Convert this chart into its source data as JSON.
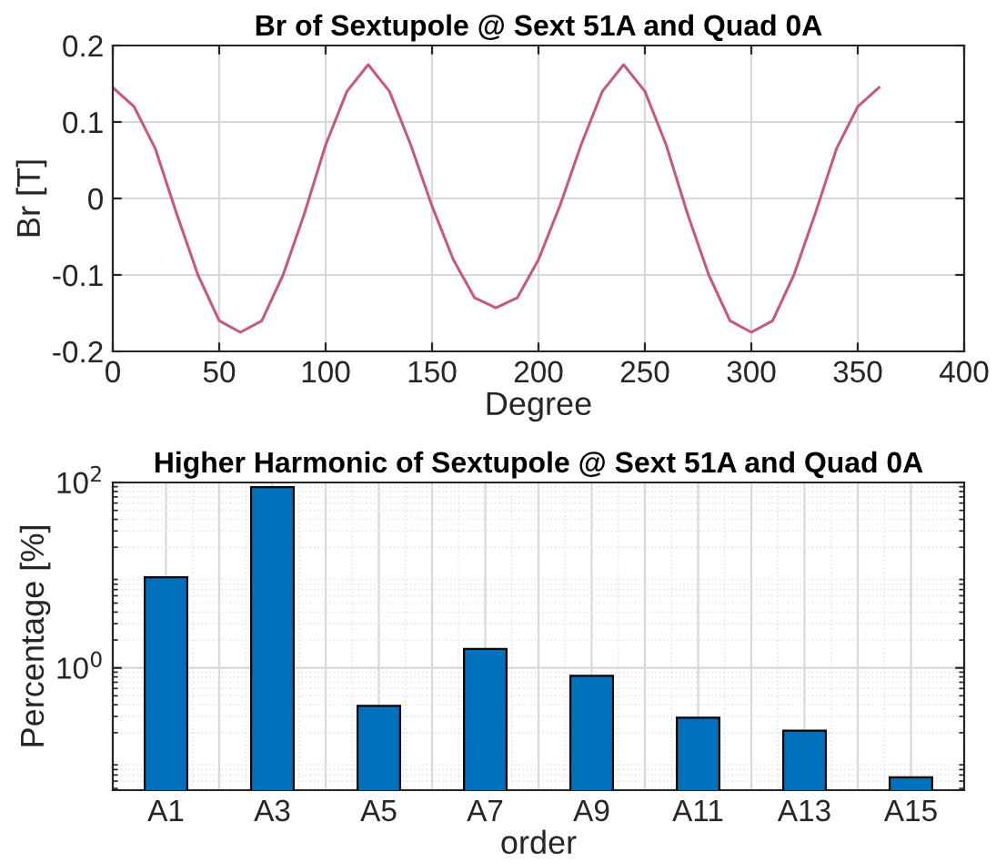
{
  "chart_data": [
    {
      "type": "line",
      "title": "Br of Sextupole @ Sext 51A and Quad 0A",
      "xlabel": "Degree",
      "ylabel": "Br [T]",
      "x": [
        0,
        10,
        20,
        30,
        40,
        50,
        60,
        70,
        80,
        90,
        100,
        110,
        120,
        130,
        140,
        150,
        160,
        170,
        180,
        190,
        200,
        210,
        220,
        230,
        240,
        250,
        260,
        270,
        280,
        290,
        300,
        310,
        320,
        330,
        340,
        350,
        360
      ],
      "series": [
        {
          "color": "#c85a78",
          "values": [
            0.145,
            0.12,
            0.065,
            -0.02,
            -0.1,
            -0.16,
            -0.175,
            -0.16,
            -0.1,
            -0.02,
            0.07,
            0.14,
            0.175,
            0.14,
            0.07,
            -0.01,
            -0.08,
            -0.13,
            -0.143,
            -0.13,
            -0.08,
            -0.01,
            0.07,
            0.14,
            0.175,
            0.14,
            0.07,
            -0.02,
            -0.1,
            -0.16,
            -0.175,
            -0.16,
            -0.1,
            -0.02,
            0.065,
            0.12,
            0.145
          ]
        }
      ],
      "xlim": [
        0,
        400
      ],
      "xticks": [
        0,
        50,
        100,
        150,
        200,
        250,
        300,
        350,
        400
      ],
      "ylim": [
        -0.2,
        0.2
      ],
      "yticks": [
        -0.2,
        -0.1,
        0,
        0.1,
        0.2
      ],
      "grid": true
    },
    {
      "type": "bar",
      "title": "Higher Harmonic of Sextupole @ Sext 51A and Quad 0A",
      "xlabel": "order",
      "ylabel": "Percentage [%]",
      "categories": [
        "A1",
        null,
        "A3",
        null,
        "A5",
        null,
        "A7",
        null,
        "A9",
        null,
        "A11",
        null,
        "A13",
        null,
        "A15"
      ],
      "series": [
        {
          "color": "#0072bd",
          "values": [
            9.5,
            null,
            89,
            null,
            0.39,
            null,
            1.6,
            null,
            0.82,
            null,
            0.29,
            null,
            0.21,
            null,
            0.066
          ]
        }
      ],
      "log": "y",
      "ylim": [
        0.048,
        100
      ],
      "yticks": [
        {
          "value": 1,
          "label": "10$^{0}$"
        },
        {
          "value": 100,
          "label": "10$^{2}$"
        }
      ],
      "grid": true
    }
  ]
}
